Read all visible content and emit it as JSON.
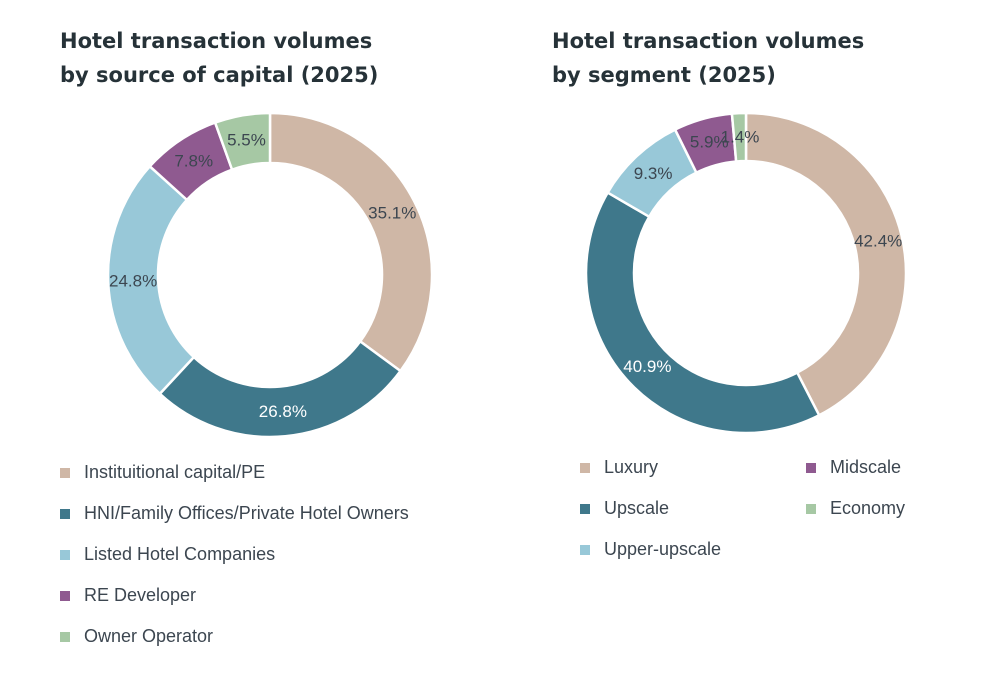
{
  "chart_data": [
    {
      "type": "pie",
      "title_lines": [
        "Hotel transaction volumes",
        "by source of capital (2025)"
      ],
      "categories": [
        "Instituitional capital/PE",
        "HNI/Family Offices/Private Hotel Owners",
        "Listed Hotel Companies",
        "RE Developer",
        "Owner Operator"
      ],
      "values": [
        35.1,
        26.8,
        24.8,
        7.8,
        5.5
      ],
      "value_labels": [
        "35.1%",
        "26.8%",
        "24.8%",
        "7.8%",
        "5.5%"
      ],
      "colors": [
        "#cfb7a6",
        "#3f788b",
        "#98c8d8",
        "#8f5a90",
        "#a6c8a4"
      ],
      "legend_position": "bottom"
    },
    {
      "type": "pie",
      "title_lines": [
        "Hotel transaction volumes",
        "by segment (2025)"
      ],
      "categories": [
        "Luxury",
        "Upscale",
        "Upper-upscale",
        "Midscale",
        "Economy"
      ],
      "values": [
        42.4,
        40.9,
        9.3,
        5.9,
        1.4
      ],
      "value_labels": [
        "42.4%",
        "40.9%",
        "9.3%",
        "5.9%",
        "1.4%"
      ],
      "colors": [
        "#cfb7a6",
        "#3f788b",
        "#98c8d8",
        "#8f5a90",
        "#a6c8a4"
      ],
      "legend_position": "bottom"
    }
  ]
}
